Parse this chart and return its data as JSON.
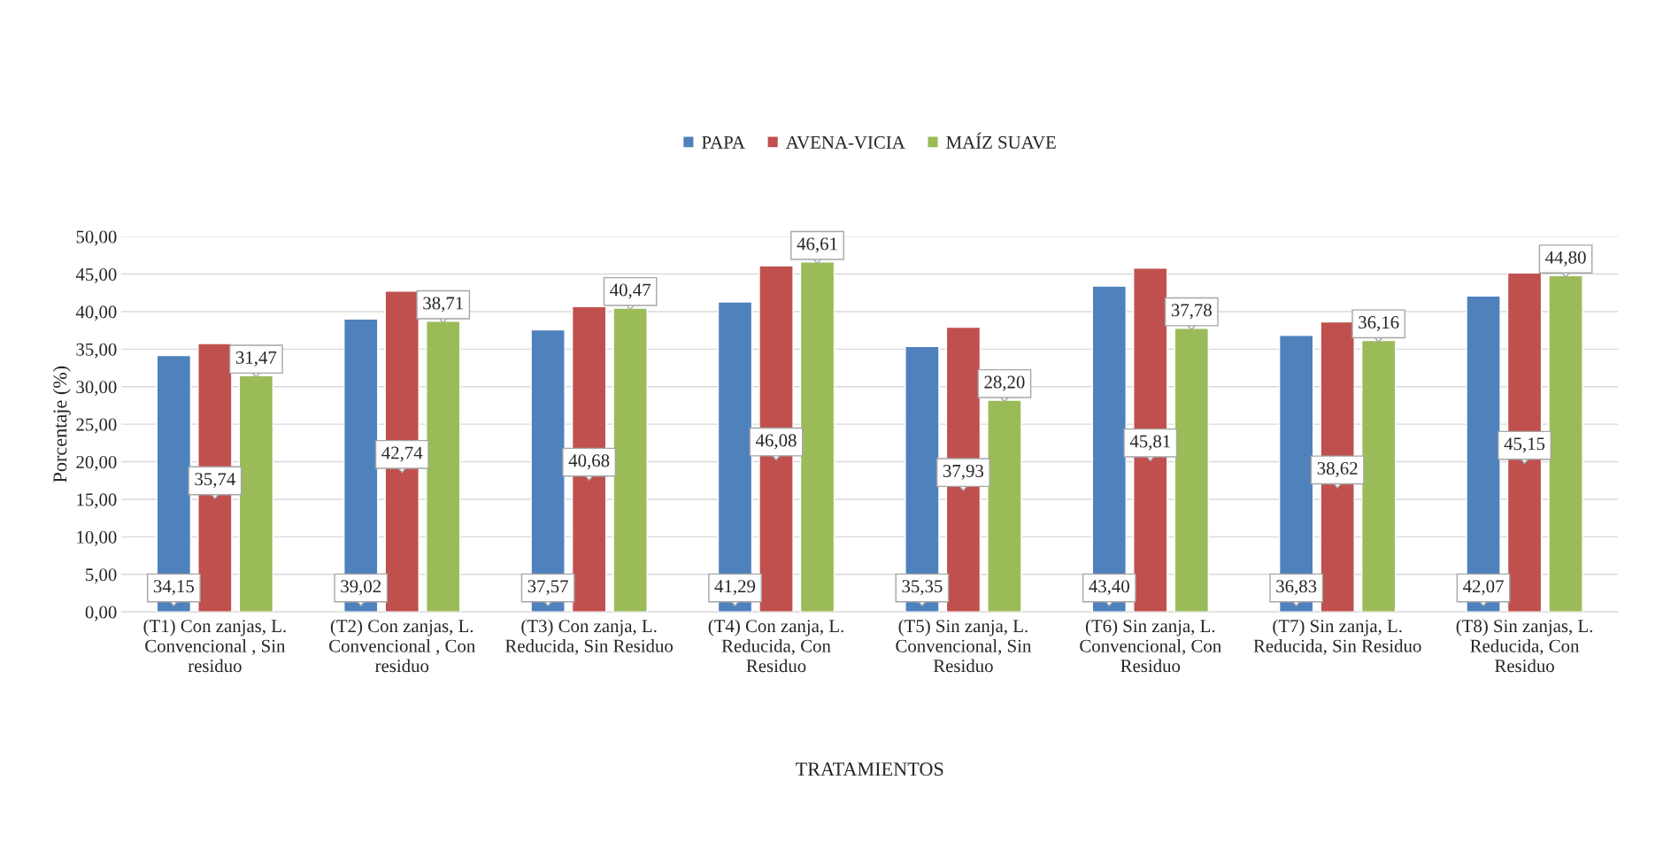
{
  "chart_data": {
    "type": "bar",
    "xlabel": "TRATAMIENTOS",
    "ylabel": "Porcentaje (%)",
    "categories": [
      "(T1) Con zanjas, L. Convencional , Sin residuo",
      "(T2) Con zanjas, L. Convencional , Con residuo",
      "(T3) Con zanja, L. Reducida, Sin Residuo",
      "(T4) Con zanja, L. Reducida, Con Residuo",
      "(T5) Sin zanja, L. Convencional, Sin Residuo",
      "(T6) Sin zanja, L. Convencional, Con Residuo",
      "(T7) Sin zanja, L. Reducida, Sin Residuo",
      "(T8) Sin zanjas, L. Reducida, Con Residuo"
    ],
    "series": [
      {
        "name": "PAPA",
        "color": "#4f81bd",
        "values": [
          34.15,
          39.02,
          37.57,
          41.29,
          35.35,
          43.4,
          36.83,
          42.07
        ],
        "value_labels": [
          "34,15",
          "39,02",
          "37,57",
          "41,29",
          "35,35",
          "43,40",
          "36,83",
          "42,07"
        ]
      },
      {
        "name": "AVENA-VICIA",
        "color": "#c0504d",
        "values": [
          35.74,
          42.74,
          40.68,
          46.08,
          37.93,
          45.81,
          38.62,
          45.15
        ],
        "value_labels": [
          "35,74",
          "42,74",
          "40,68",
          "46,08",
          "37,93",
          "45,81",
          "38,62",
          "45,15"
        ]
      },
      {
        "name": "MAÍZ SUAVE",
        "color": "#9bbb59",
        "values": [
          31.47,
          38.71,
          40.47,
          46.61,
          28.2,
          37.78,
          36.16,
          44.8
        ],
        "value_labels": [
          "31,47",
          "38,71",
          "40,47",
          "46,61",
          "28,20",
          "37,78",
          "36,16",
          "44,80"
        ]
      }
    ],
    "ylim": [
      0,
      50
    ],
    "yticks": [
      {
        "value": 0,
        "label": "0,00"
      },
      {
        "value": 5,
        "label": "5,00"
      },
      {
        "value": 10,
        "label": "10,00"
      },
      {
        "value": 15,
        "label": "15,00"
      },
      {
        "value": 20,
        "label": "20,00"
      },
      {
        "value": 25,
        "label": "25,00"
      },
      {
        "value": 30,
        "label": "30,00"
      },
      {
        "value": 35,
        "label": "35,00"
      },
      {
        "value": 40,
        "label": "40,00"
      },
      {
        "value": 45,
        "label": "45,00"
      },
      {
        "value": 50,
        "label": "50,00"
      }
    ],
    "grid": "y",
    "legend": "top"
  }
}
